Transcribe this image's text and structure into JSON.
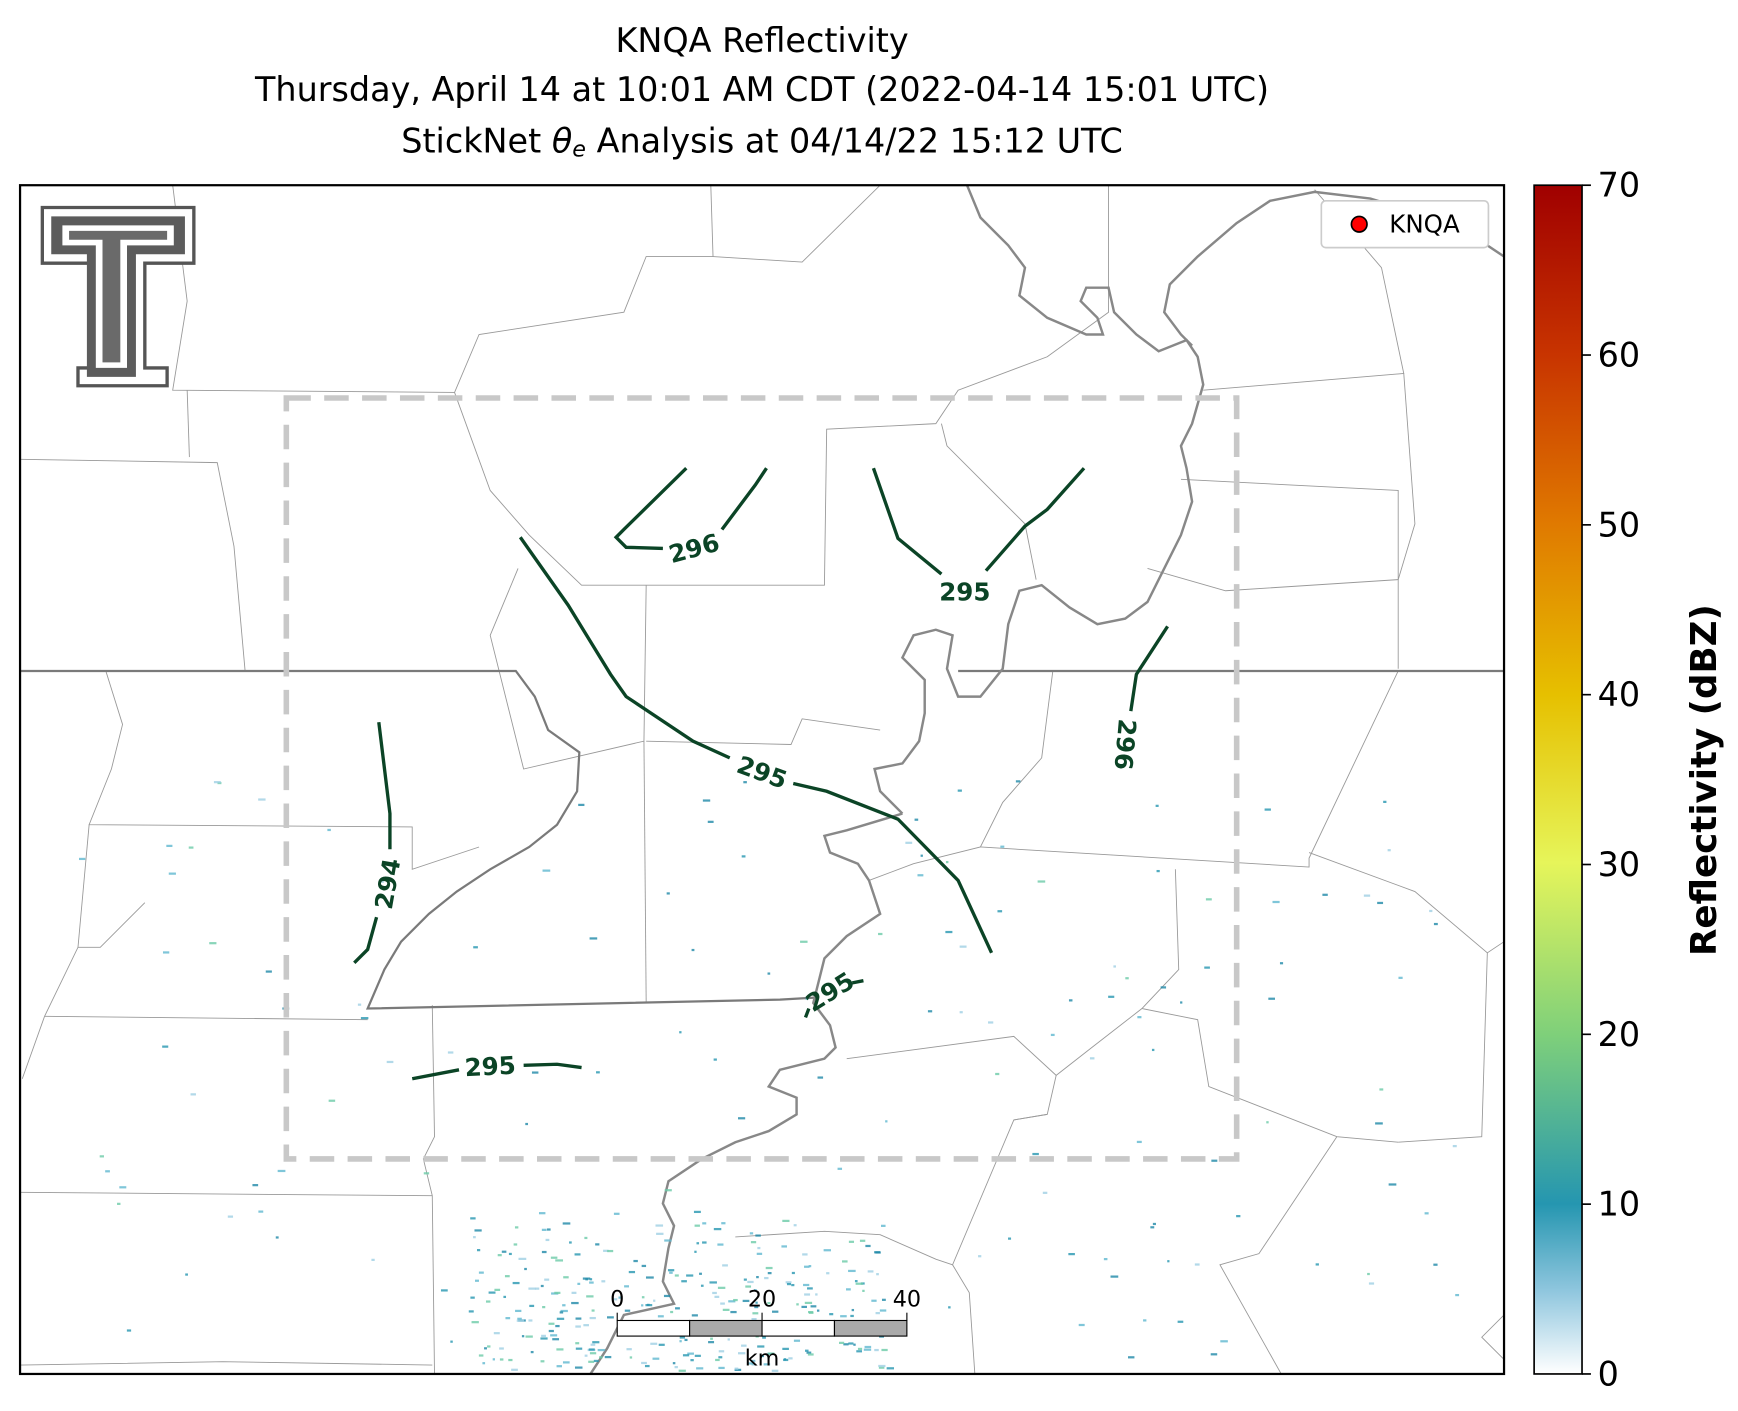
{
  "title": [
    "KNQA Reflectivity",
    "Thursday, April 14 at 10:01 AM CDT (2022-04-14 15:01 UTC)"
  ],
  "subtitle": {
    "prefix": "StickNet ",
    "symbol": "θ",
    "subscript": "e",
    "suffix": " Analysis at 04/14/22 15:12 UTC"
  },
  "legend": {
    "label": "KNQA",
    "color": "#ff0000"
  },
  "colorbar": {
    "label": "Reflectivity (dBZ)",
    "lim": [
      0,
      70
    ],
    "ticks": [
      0,
      10,
      20,
      30,
      40,
      50,
      60,
      70
    ]
  },
  "contour_labels": [
    296,
    295,
    296,
    295,
    294,
    295,
    295
  ],
  "scale_bar": {
    "unit": "km",
    "ticks": [
      0,
      20,
      40
    ]
  }
}
